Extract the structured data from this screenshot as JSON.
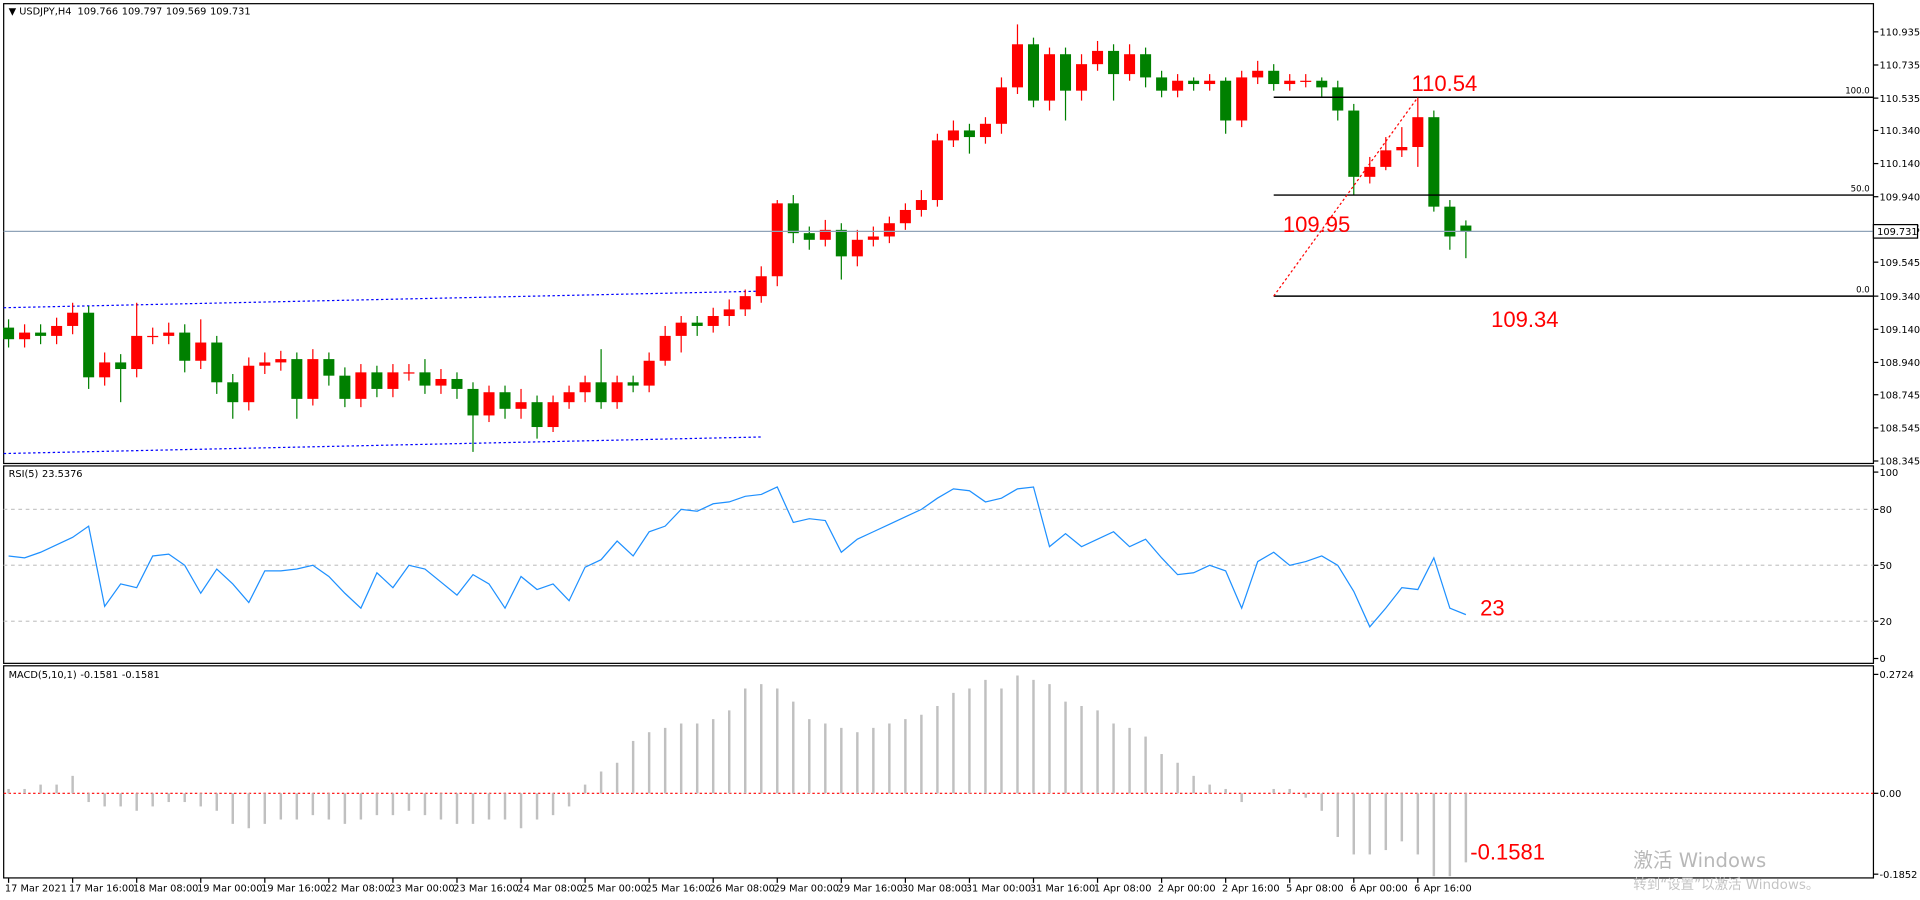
{
  "chart_data": [
    {
      "type": "candlestick",
      "title": "USDJPY,H4",
      "categories": [
        "17 Mar 2021",
        null,
        null,
        null,
        "17 Mar 16:00",
        null,
        null,
        null,
        "18 Mar 08:00",
        null,
        null,
        null,
        "19 Mar 00:00",
        null,
        null,
        null,
        "19 Mar 16:00",
        null,
        null,
        null,
        "22 Mar 08:00",
        null,
        null,
        null,
        "23 Mar 00:00",
        null,
        null,
        null,
        "23 Mar 16:00",
        null,
        null,
        null,
        "24 Mar 08:00",
        null,
        null,
        null,
        "25 Mar 00:00",
        null,
        null,
        null,
        "25 Mar 16:00",
        null,
        null,
        null,
        "26 Mar 08:00",
        null,
        null,
        null,
        "29 Mar 00:00",
        null,
        null,
        null,
        "29 Mar 16:00",
        null,
        null,
        null,
        "30 Mar 08:00",
        null,
        null,
        null,
        "31 Mar 00:00",
        null,
        null,
        null,
        "31 Mar 16:00",
        null,
        null,
        null,
        "1 Apr 08:00",
        null,
        null,
        null,
        "2 Apr 00:00",
        null,
        null,
        null,
        "2 Apr 16:00",
        null,
        null,
        null,
        "5 Apr 08:00",
        null,
        null,
        null,
        "6 Apr 00:00",
        null,
        null,
        null,
        "6 Apr 16:00",
        null,
        null,
        null
      ],
      "open": [
        109.15,
        109.08,
        109.12,
        109.1,
        109.16,
        109.24,
        108.85,
        108.94,
        108.9,
        109.1,
        109.1,
        109.12,
        108.95,
        109.06,
        108.82,
        108.7,
        108.92,
        108.94,
        108.96,
        108.72,
        108.96,
        108.86,
        108.72,
        108.88,
        108.78,
        108.88,
        108.88,
        108.8,
        108.84,
        108.78,
        108.62,
        108.76,
        108.66,
        108.7,
        108.55,
        108.7,
        108.76,
        108.82,
        108.7,
        108.82,
        108.8,
        108.95,
        109.1,
        109.18,
        109.16,
        109.22,
        109.26,
        109.34,
        109.46,
        109.9,
        109.72,
        109.68,
        109.74,
        109.58,
        109.68,
        109.7,
        109.78,
        109.86,
        109.92,
        110.28,
        110.34,
        110.3,
        110.38,
        110.6,
        110.86,
        110.52,
        110.8,
        110.58,
        110.74,
        110.82,
        110.68,
        110.8,
        110.66,
        110.58,
        110.64,
        110.62,
        110.64,
        110.4,
        110.66,
        110.7,
        110.62,
        110.64,
        110.64,
        110.6,
        110.46,
        110.06,
        110.12,
        110.22,
        110.24,
        110.42,
        109.88,
        109.766
      ],
      "high": [
        109.2,
        109.17,
        109.17,
        109.21,
        109.3,
        109.28,
        109.0,
        108.99,
        109.3,
        109.15,
        109.18,
        109.17,
        109.2,
        109.1,
        108.87,
        108.97,
        109.0,
        109.01,
        109.0,
        109.02,
        109.0,
        108.91,
        108.93,
        108.92,
        108.93,
        108.93,
        108.96,
        108.9,
        108.88,
        108.82,
        108.8,
        108.8,
        108.78,
        108.74,
        108.74,
        108.8,
        108.86,
        109.02,
        108.86,
        108.86,
        109.0,
        109.16,
        109.22,
        109.22,
        109.27,
        109.32,
        109.38,
        109.52,
        109.92,
        109.95,
        109.76,
        109.8,
        109.78,
        109.74,
        109.76,
        109.82,
        109.9,
        109.98,
        110.32,
        110.4,
        110.38,
        110.42,
        110.66,
        110.98,
        110.9,
        110.84,
        110.84,
        110.8,
        110.88,
        110.86,
        110.86,
        110.84,
        110.7,
        110.68,
        110.66,
        110.68,
        110.66,
        110.7,
        110.76,
        110.74,
        110.68,
        110.68,
        110.66,
        110.64,
        110.5,
        110.18,
        110.3,
        110.36,
        110.54,
        110.46,
        109.92,
        109.797
      ],
      "low": [
        109.03,
        109.03,
        109.05,
        109.05,
        109.11,
        108.78,
        108.8,
        108.7,
        108.85,
        109.05,
        109.05,
        108.88,
        108.9,
        108.75,
        108.6,
        108.65,
        108.87,
        108.89,
        108.6,
        108.68,
        108.8,
        108.67,
        108.67,
        108.73,
        108.73,
        108.83,
        108.75,
        108.75,
        108.72,
        108.4,
        108.58,
        108.6,
        108.6,
        108.48,
        108.52,
        108.66,
        108.7,
        108.66,
        108.66,
        108.76,
        108.76,
        108.92,
        109.0,
        109.1,
        109.12,
        109.16,
        109.22,
        109.3,
        109.4,
        109.66,
        109.62,
        109.64,
        109.44,
        109.52,
        109.64,
        109.66,
        109.74,
        109.82,
        109.88,
        110.24,
        110.2,
        110.26,
        110.32,
        110.56,
        110.48,
        110.46,
        110.4,
        110.52,
        110.7,
        110.52,
        110.64,
        110.6,
        110.54,
        110.54,
        110.58,
        110.58,
        110.32,
        110.36,
        110.62,
        110.58,
        110.58,
        110.6,
        110.54,
        110.4,
        109.95,
        110.02,
        110.1,
        110.18,
        110.12,
        109.85,
        109.62,
        109.569
      ],
      "close": [
        109.08,
        109.12,
        109.1,
        109.16,
        109.24,
        108.85,
        108.94,
        108.9,
        109.1,
        109.1,
        109.12,
        108.95,
        109.06,
        108.82,
        108.7,
        108.92,
        108.94,
        108.96,
        108.72,
        108.96,
        108.86,
        108.72,
        108.88,
        108.78,
        108.88,
        108.88,
        108.8,
        108.84,
        108.78,
        108.62,
        108.76,
        108.66,
        108.7,
        108.55,
        108.7,
        108.76,
        108.82,
        108.7,
        108.82,
        108.8,
        108.95,
        109.1,
        109.18,
        109.16,
        109.22,
        109.26,
        109.34,
        109.46,
        109.9,
        109.72,
        109.68,
        109.74,
        109.58,
        109.68,
        109.7,
        109.78,
        109.86,
        109.92,
        110.28,
        110.34,
        110.3,
        110.38,
        110.6,
        110.86,
        110.52,
        110.8,
        110.58,
        110.74,
        110.82,
        110.68,
        110.8,
        110.66,
        110.58,
        110.64,
        110.62,
        110.64,
        110.4,
        110.66,
        110.7,
        110.62,
        110.64,
        110.64,
        110.6,
        110.46,
        110.06,
        110.12,
        110.22,
        110.24,
        110.42,
        109.88,
        109.7,
        109.731
      ],
      "up_color": "#ff0000",
      "down_color": "#008000",
      "ylim": [
        108.33,
        111.105
      ],
      "yticks": [
        110.935,
        110.735,
        110.535,
        {
          "value": 110.34,
          "label": "110.340"
        },
        {
          "value": 110.14,
          "label": "110.140"
        },
        {
          "value": 109.94,
          "label": "109.940"
        },
        109.745,
        109.545,
        {
          "value": 109.34,
          "label": "109.340"
        },
        {
          "value": 109.14,
          "label": "109.140"
        },
        {
          "value": 108.94,
          "label": "108.940"
        },
        108.745,
        108.545,
        108.345
      ],
      "channel": {
        "x": [
          0,
          47
        ],
        "upper": [
          109.27,
          109.37
        ],
        "lower": [
          108.39,
          108.49
        ],
        "color": "#0000ff"
      },
      "fibo": {
        "x": [
          79,
          88
        ],
        "levels": [
          {
            "value": 100,
            "label": "100.0"
          },
          {
            "value": 50,
            "label": "50.0"
          },
          {
            "value": 0,
            "label": "0.0"
          }
        ],
        "prices": [
          110.54,
          109.95,
          109.34
        ],
        "line_color": "#000000",
        "trend_color": "#ff0000"
      }
    },
    {
      "type": "line",
      "title": "RSI(5)",
      "color": "#1e90ff",
      "values": [
        55,
        54,
        57,
        61,
        65,
        71,
        28,
        40,
        38,
        55,
        56,
        50,
        35,
        48,
        40,
        30,
        47,
        47,
        48,
        50,
        44,
        35,
        27,
        46,
        38,
        50,
        48,
        41,
        34,
        45,
        40,
        27,
        44,
        37,
        40,
        31,
        49,
        53,
        63,
        55,
        68,
        71,
        80,
        79,
        83,
        84,
        87,
        88,
        92,
        73,
        75,
        74,
        57,
        64,
        68,
        72,
        76,
        80,
        86,
        91,
        90,
        84,
        86,
        91,
        92,
        60,
        67,
        60,
        64,
        68,
        60,
        64,
        54,
        45,
        46,
        50,
        47,
        27,
        52,
        57,
        50,
        52,
        55,
        50,
        36,
        17,
        27,
        38,
        37,
        54,
        27,
        23.5376
      ],
      "annotation": 23,
      "ylim": [
        -2.6,
        103.3
      ],
      "yticks": [
        100,
        80,
        50,
        20,
        0
      ],
      "grid": true
    },
    {
      "type": "bar",
      "title": "MACD(5,10,1)",
      "color": "#c0c0c0",
      "values": [
        0.01,
        0.01,
        0.02,
        0.02,
        0.04,
        -0.02,
        -0.03,
        -0.03,
        -0.04,
        -0.03,
        -0.02,
        -0.02,
        -0.03,
        -0.04,
        -0.07,
        -0.08,
        -0.07,
        -0.06,
        -0.06,
        -0.05,
        -0.06,
        -0.07,
        -0.06,
        -0.05,
        -0.05,
        -0.04,
        -0.05,
        -0.06,
        -0.07,
        -0.07,
        -0.06,
        -0.06,
        -0.08,
        -0.06,
        -0.05,
        -0.03,
        0.02,
        0.05,
        0.07,
        0.12,
        0.14,
        0.15,
        0.16,
        0.16,
        0.17,
        0.19,
        0.24,
        0.25,
        0.24,
        0.21,
        0.17,
        0.16,
        0.15,
        0.14,
        0.15,
        0.16,
        0.17,
        0.18,
        0.2,
        0.23,
        0.24,
        0.26,
        0.24,
        0.27,
        0.26,
        0.25,
        0.21,
        0.2,
        0.19,
        0.16,
        0.15,
        0.13,
        0.09,
        0.07,
        0.04,
        0.02,
        0.01,
        -0.02,
        0.0,
        0.01,
        0.01,
        -0.01,
        -0.04,
        -0.1,
        -0.14,
        -0.14,
        -0.13,
        -0.11,
        -0.14,
        -0.19,
        -0.19,
        -0.1581
      ],
      "ylim": [
        -0.1938,
        0.2921
      ],
      "yticks": [
        0.2724,
        {
          "value": 0,
          "label": "0.00"
        },
        -0.1852
      ],
      "zero_color": "#ff0000"
    }
  ],
  "watermark": {
    "line1": "激活 Windows",
    "line2": "转到“设置”以激活 Windows。"
  }
}
